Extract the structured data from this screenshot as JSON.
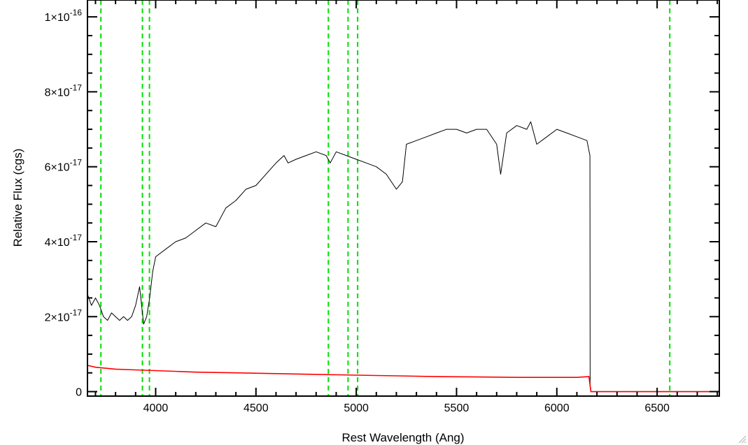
{
  "chart_data": {
    "type": "line",
    "xlabel": "Rest Wavelength (Ang)",
    "ylabel": "Relative Flux (cgs)",
    "xlim": [
      3660,
      6810
    ],
    "ylim": [
      -1.2e-18,
      1.045e-16
    ],
    "x_ticks": [
      4000,
      4500,
      5000,
      5500,
      6000,
      6500
    ],
    "x_tick_labels": [
      "4000",
      "4500",
      "5000",
      "5500",
      "6000",
      "6500"
    ],
    "y_ticks": [
      0,
      2e-17,
      4e-17,
      6e-17,
      8e-17,
      1e-16
    ],
    "y_tick_labels": [
      {
        "mantissa": "0",
        "exponent": ""
      },
      {
        "mantissa": "2×10",
        "exponent": "-17"
      },
      {
        "mantissa": "4×10",
        "exponent": "-17"
      },
      {
        "mantissa": "6×10",
        "exponent": "-17"
      },
      {
        "mantissa": "8×10",
        "exponent": "-17"
      },
      {
        "mantissa": "1×10",
        "exponent": "-16"
      }
    ],
    "grid": false,
    "series": [
      {
        "color": "#000000",
        "x": [
          3660,
          3680,
          3700,
          3720,
          3740,
          3760,
          3780,
          3800,
          3820,
          3840,
          3860,
          3880,
          3900,
          3920,
          3940,
          3955,
          3970,
          3985,
          4000,
          4050,
          4100,
          4150,
          4200,
          4250,
          4300,
          4350,
          4400,
          4450,
          4500,
          4550,
          4600,
          4640,
          4660,
          4700,
          4750,
          4800,
          4850,
          4870,
          4900,
          4950,
          5000,
          5050,
          5100,
          5150,
          5200,
          5230,
          5250,
          5300,
          5350,
          5400,
          5450,
          5500,
          5550,
          5600,
          5650,
          5700,
          5720,
          5750,
          5800,
          5850,
          5870,
          5900,
          5950,
          6000,
          6050,
          6100,
          6150,
          6165,
          6166,
          6170,
          6500,
          6810
        ],
        "y": [
          2.6e-17,
          2.3e-17,
          2.5e-17,
          2.3e-17,
          2e-17,
          1.9e-17,
          2.1e-17,
          2e-17,
          1.9e-17,
          2e-17,
          1.9e-17,
          2e-17,
          2.3e-17,
          2.8e-17,
          1.8e-17,
          2e-17,
          2.5e-17,
          3.2e-17,
          3.6e-17,
          3.8e-17,
          4e-17,
          4.1e-17,
          4.3e-17,
          4.5e-17,
          4.4e-17,
          4.9e-17,
          5.1e-17,
          5.4e-17,
          5.5e-17,
          5.8e-17,
          6.1e-17,
          6.3e-17,
          6.1e-17,
          6.2e-17,
          6.3e-17,
          6.4e-17,
          6.3e-17,
          6.1e-17,
          6.4e-17,
          6.3e-17,
          6.2e-17,
          6.1e-17,
          6e-17,
          5.8e-17,
          5.4e-17,
          5.6e-17,
          6.6e-17,
          6.7e-17,
          6.8e-17,
          6.9e-17,
          7e-17,
          7e-17,
          6.9e-17,
          7e-17,
          7e-17,
          6.6e-17,
          5.8e-17,
          6.9e-17,
          7.1e-17,
          7e-17,
          7.2e-17,
          6.6e-17,
          6.8e-17,
          7e-17,
          6.9e-17,
          6.8e-17,
          6.7e-17,
          6.3e-17,
          1e-18,
          0,
          0,
          0
        ]
      },
      {
        "color": "#ff0000",
        "x": [
          3660,
          3700,
          3800,
          3900,
          4000,
          4200,
          4400,
          4600,
          4800,
          5000,
          5200,
          5400,
          5600,
          5800,
          6000,
          6100,
          6160,
          6170,
          6500,
          6810
        ],
        "y": [
          7e-18,
          6.5e-18,
          6e-18,
          5.8e-18,
          5.6e-18,
          5.2e-18,
          5e-18,
          4.8e-18,
          4.6e-18,
          4.4e-18,
          4.2e-18,
          4e-18,
          3.9e-18,
          3.8e-18,
          3.8e-18,
          3.8e-18,
          4e-18,
          0,
          0,
          0
        ]
      }
    ],
    "vertical_lines": {
      "color": "#00e000",
      "style": "dashed",
      "x": [
        3727,
        3934,
        3969,
        4861,
        4959,
        5007,
        6563
      ]
    }
  }
}
